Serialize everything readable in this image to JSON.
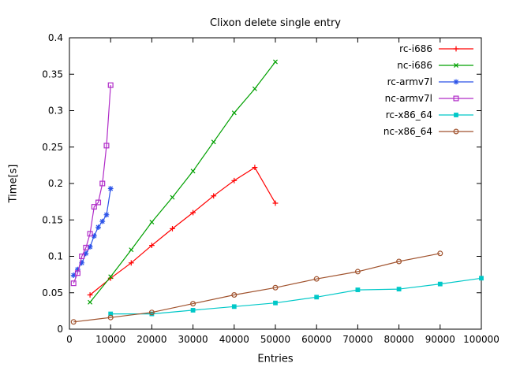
{
  "chart_data": {
    "type": "line",
    "title": "Clixon delete single entry",
    "xlabel": "Entries",
    "ylabel": "Time[s]",
    "xlim": [
      0,
      100000
    ],
    "ylim": [
      0,
      0.4
    ],
    "grid": false,
    "legend_position": "top-right-inside",
    "xticks": [
      0,
      10000,
      20000,
      30000,
      40000,
      50000,
      60000,
      70000,
      80000,
      90000,
      100000
    ],
    "xtick_labels": [
      "0",
      "10000",
      "20000",
      "30000",
      "40000",
      "50000",
      "60000",
      "70000",
      "80000",
      "90000",
      "100000"
    ],
    "yticks": [
      0,
      0.05,
      0.1,
      0.15,
      0.2,
      0.25,
      0.3,
      0.35,
      0.4
    ],
    "ytick_labels": [
      "0",
      "0.05",
      "0.1",
      "0.15",
      "0.2",
      "0.25",
      "0.3",
      "0.35",
      "0.4"
    ],
    "series": [
      {
        "name": "rc-i686",
        "color": "#ff0000",
        "marker": "plus",
        "x": [
          5000,
          10000,
          15000,
          20000,
          25000,
          30000,
          35000,
          40000,
          45000,
          50000
        ],
        "y": [
          0.047,
          0.07,
          0.091,
          0.115,
          0.138,
          0.16,
          0.183,
          0.204,
          0.222,
          0.173
        ]
      },
      {
        "name": "nc-i686",
        "color": "#00a000",
        "marker": "cross",
        "x": [
          5000,
          10000,
          15000,
          20000,
          25000,
          30000,
          35000,
          40000,
          45000,
          50000
        ],
        "y": [
          0.037,
          0.072,
          0.109,
          0.147,
          0.181,
          0.217,
          0.257,
          0.297,
          0.33,
          0.367
        ]
      },
      {
        "name": "rc-armv7l",
        "color": "#2a52e8",
        "marker": "asterisk",
        "x": [
          1000,
          2000,
          3000,
          4000,
          5000,
          6000,
          7000,
          8000,
          9000,
          10000
        ],
        "y": [
          0.074,
          0.082,
          0.091,
          0.104,
          0.113,
          0.128,
          0.14,
          0.148,
          0.157,
          0.193
        ]
      },
      {
        "name": "nc-armv7l",
        "color": "#b02cc8",
        "marker": "square-open",
        "x": [
          1000,
          2000,
          3000,
          4000,
          5000,
          6000,
          7000,
          8000,
          9000,
          10000
        ],
        "y": [
          0.063,
          0.077,
          0.1,
          0.112,
          0.131,
          0.168,
          0.174,
          0.2,
          0.252,
          0.335
        ]
      },
      {
        "name": "rc-x86_64",
        "color": "#00c8c8",
        "marker": "square-filled",
        "x": [
          10000,
          20000,
          30000,
          40000,
          50000,
          60000,
          70000,
          80000,
          90000,
          100000
        ],
        "y": [
          0.021,
          0.021,
          0.026,
          0.031,
          0.036,
          0.044,
          0.054,
          0.055,
          0.062,
          0.07
        ]
      },
      {
        "name": "nc-x86_64",
        "color": "#a0522d",
        "marker": "circle-open",
        "x": [
          1000,
          10000,
          20000,
          30000,
          40000,
          50000,
          60000,
          70000,
          80000,
          90000
        ],
        "y": [
          0.01,
          0.016,
          0.023,
          0.035,
          0.047,
          0.057,
          0.069,
          0.079,
          0.093,
          0.104
        ]
      }
    ]
  }
}
